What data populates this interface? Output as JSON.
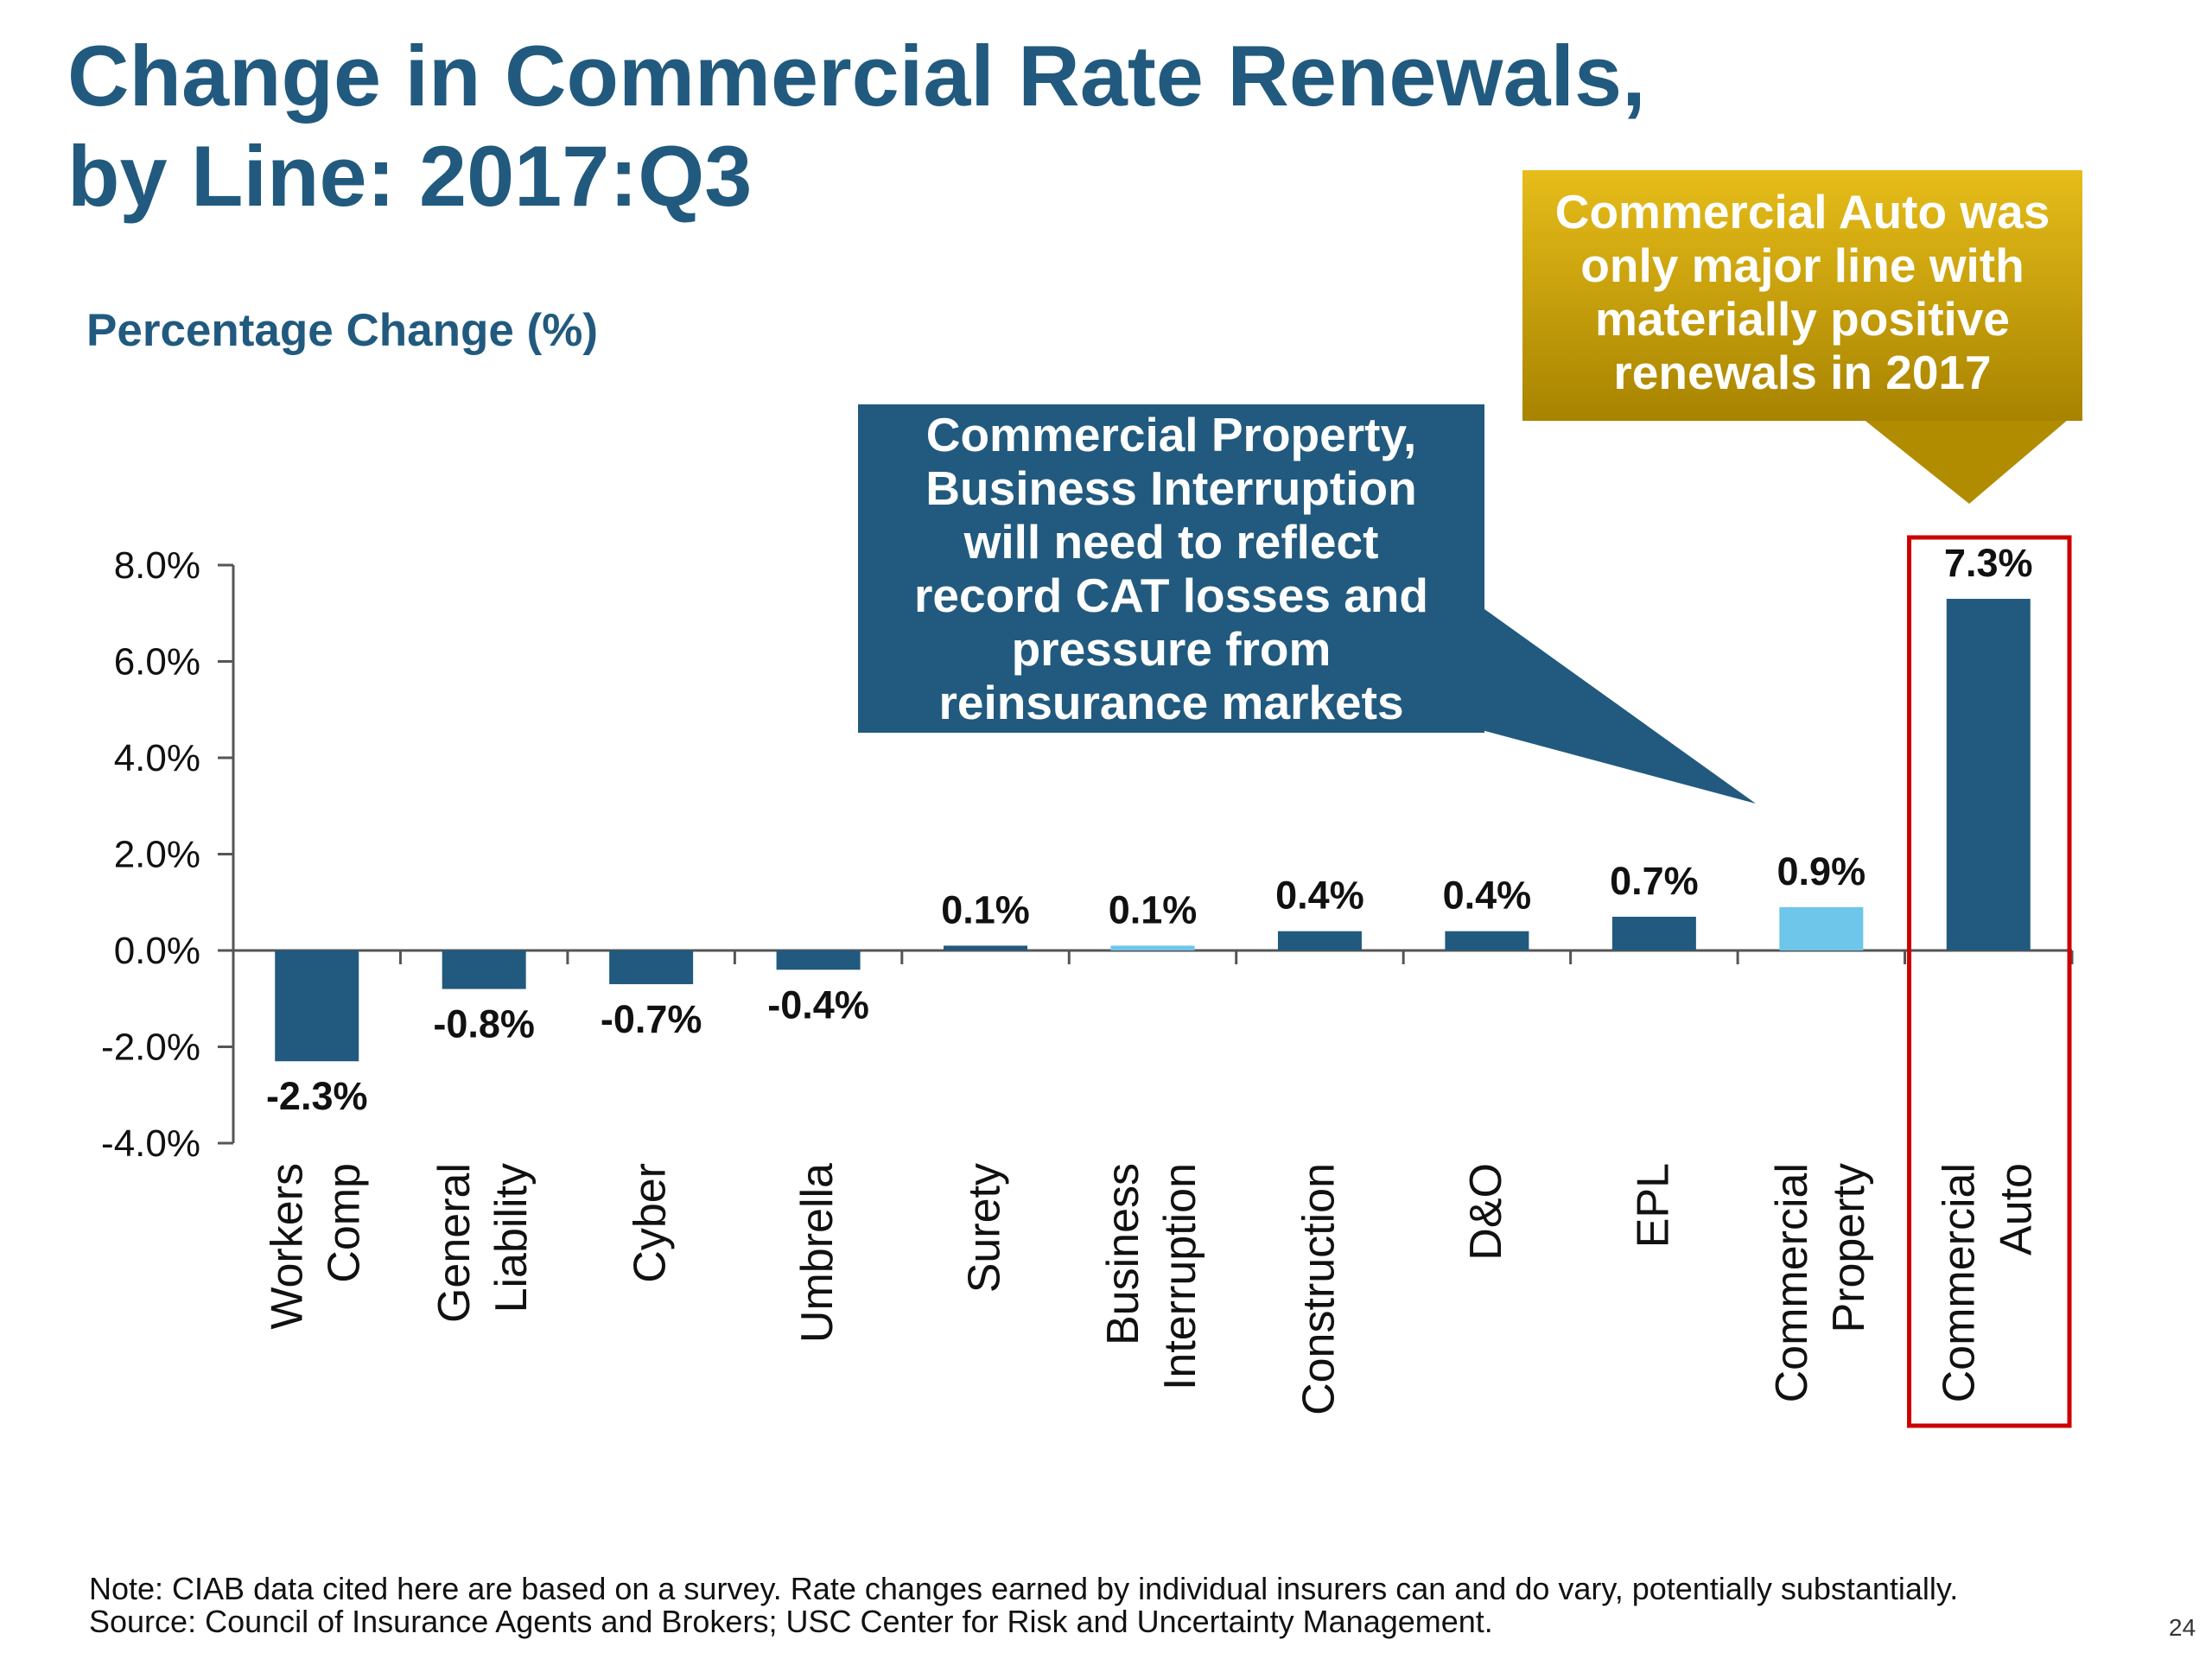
{
  "title": "Change in Commercial Rate Renewals,\nby Line: 2017:Q3",
  "chart_data": {
    "type": "bar",
    "title": "Change in Commercial Rate Renewals, by Line: 2017:Q3",
    "ylabel": "Percentage Change (%)",
    "xlabel": "",
    "ylim": [
      -4,
      8
    ],
    "yticks": [
      8,
      6,
      4,
      2,
      0,
      -2,
      -4
    ],
    "ytick_labels": [
      "8.0%",
      "6.0%",
      "4.0%",
      "2.0%",
      "0.0%",
      "-2.0%",
      "-4.0%"
    ],
    "categories": [
      [
        "Workers",
        "Comp"
      ],
      [
        "General",
        "Liability"
      ],
      [
        "Cyber"
      ],
      [
        "Umbrella"
      ],
      [
        "Surety"
      ],
      [
        "Business",
        "Interruption"
      ],
      [
        "Construction"
      ],
      [
        "D&O"
      ],
      [
        "EPL"
      ],
      [
        "Commercial",
        "Property"
      ],
      [
        "Commercial",
        "Auto"
      ]
    ],
    "values": [
      -2.3,
      -0.8,
      -0.7,
      -0.4,
      0.1,
      0.1,
      0.4,
      0.4,
      0.7,
      0.9,
      7.3
    ],
    "data_labels": [
      "-2.3%",
      "-0.8%",
      "-0.7%",
      "-0.4%",
      "0.1%",
      "0.1%",
      "0.4%",
      "0.4%",
      "0.7%",
      "0.9%",
      "7.3%"
    ],
    "bar_colors": [
      "#215a7e",
      "#215a7e",
      "#215a7e",
      "#215a7e",
      "#215a7e",
      "#6ec6ea",
      "#215a7e",
      "#215a7e",
      "#215a7e",
      "#6ec6ea",
      "#215a7e"
    ],
    "highlight_category_index": 10,
    "highlight_color": "#cc0000",
    "grid": false
  },
  "callouts": {
    "left": {
      "text": "Commercial Property,\nBusiness Interruption\nwill need to reflect\nrecord CAT losses and\npressure from\nreinsurance markets",
      "color": "#215a7e"
    },
    "right": {
      "text": "Commercial Auto was\nonly major line with\nmaterially positive\nrenewals in 2017",
      "color": "#c9a200"
    }
  },
  "footnote": {
    "note": "Note: CIAB data cited here are based on a survey. Rate changes earned by individual insurers can and do vary, potentially substantially.",
    "source": "Source: Council of Insurance Agents and Brokers; USC Center for Risk and Uncertainty Management."
  },
  "page_number": "24"
}
